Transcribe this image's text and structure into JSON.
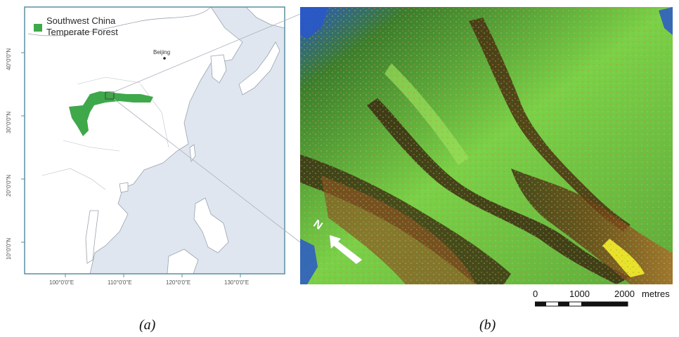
{
  "panel_a": {
    "caption": "(a)",
    "legend": {
      "line1": "Southwest China",
      "line2": "Temperate Forest",
      "swatch_color": "#3fa84a"
    },
    "city_label": "Beijing",
    "lat_labels": [
      "40°0'0\"N",
      "30°0'0\"N",
      "20°0'0\"N",
      "10°0'0\"N"
    ],
    "lon_labels": [
      "100°0'0\"E",
      "110°0'0\"E",
      "120°0'0\"E",
      "130°0'0\"E"
    ],
    "colors": {
      "sea": "#dfe6ef",
      "land": "#ffffff",
      "forest": "#3fa84a",
      "frame": "#5b8fa0"
    }
  },
  "panel_b": {
    "caption": "(b)",
    "north_label": "N",
    "scale_bar": {
      "labels": [
        "0",
        "1000",
        "2000"
      ],
      "unit": "metres"
    },
    "colors": {
      "high": "#7ad147",
      "mid": "#b06a2a",
      "valley": "#3b2a12",
      "water": "#2a58c8",
      "ridge": "#e9e22a"
    }
  }
}
